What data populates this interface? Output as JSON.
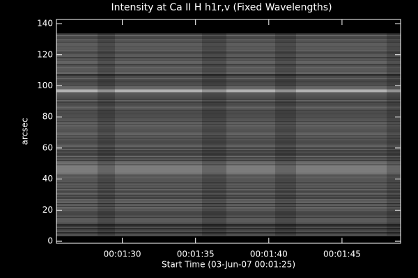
{
  "chart_data": {
    "type": "image",
    "title": "Intensity at Ca II H h1r,v (Fixed Wavelengths)",
    "xlabel": "Start Time (03-Jun-07 00:01:25)",
    "ylabel": "arcsec",
    "xlim": [
      85.5,
      109
    ],
    "xticks": [
      {
        "value": 90,
        "label": "00:01:30"
      },
      {
        "value": 95,
        "label": "00:01:35"
      },
      {
        "value": 100,
        "label": "00:01:40"
      },
      {
        "value": 105,
        "label": "00:01:45"
      }
    ],
    "ylim": [
      -1.3,
      142.7
    ],
    "yticks": [
      0,
      20,
      40,
      60,
      80,
      100,
      120,
      140
    ],
    "reference_line": 107,
    "color": "#ffffff"
  }
}
